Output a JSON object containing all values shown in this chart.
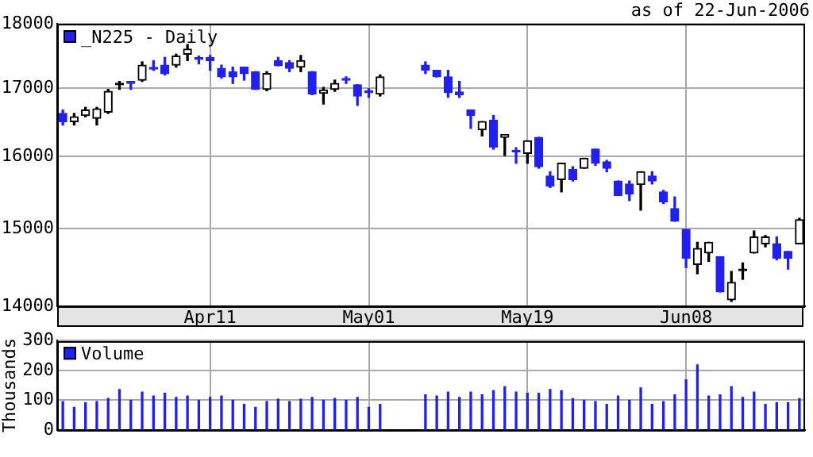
{
  "chart_data": [
    {
      "type": "candlestick",
      "annotations": [
        "as of 22-Jun-2006"
      ],
      "log": "y",
      "grid": true,
      "legend": "top left",
      "ylim": [
        14000,
        18000
      ],
      "yticks": [
        14000,
        15000,
        16000,
        17000,
        18000
      ],
      "categories": [
        null,
        null,
        null,
        null,
        null,
        null,
        null,
        null,
        null,
        null,
        null,
        null,
        null,
        "Apr11",
        null,
        null,
        null,
        null,
        null,
        null,
        null,
        null,
        null,
        null,
        null,
        null,
        null,
        "May01",
        null,
        null,
        null,
        null,
        null,
        null,
        null,
        null,
        null,
        null,
        null,
        null,
        null,
        "May19",
        null,
        null,
        null,
        null,
        null,
        null,
        null,
        null,
        null,
        null,
        null,
        null,
        null,
        "Jun08",
        null,
        null,
        null,
        null,
        null,
        null,
        null,
        null,
        null,
        null
      ],
      "series": [
        {
          "name": "_N225 - Daily",
          "color": "#2020f0",
          "colors": [
            "#2020f0",
            "#000000",
            "#000000",
            "#000000",
            "#000000",
            "#000000",
            "#2020f0",
            "#000000",
            "#2020f0",
            "#2020f0",
            "#000000",
            "#000000",
            "#2020f0",
            "#2020f0",
            "#2020f0",
            "#2020f0",
            "#2020f0",
            "#2020f0",
            "#000000",
            "#2020f0",
            "#2020f0",
            "#000000",
            "#2020f0",
            "#000000",
            "#000000",
            "#2020f0",
            "#2020f0",
            "#2020f0",
            "#000000",
            null,
            null,
            null,
            "#2020f0",
            "#2020f0",
            "#2020f0",
            "#2020f0",
            "#2020f0",
            "#000000",
            "#2020f0",
            "#000000",
            "#2020f0",
            "#000000",
            "#2020f0",
            "#2020f0",
            "#000000",
            "#2020f0",
            "#000000",
            "#2020f0",
            "#2020f0",
            "#2020f0",
            "#2020f0",
            "#000000",
            "#2020f0",
            "#2020f0",
            "#2020f0",
            "#2020f0",
            "#000000",
            "#000000",
            "#2020f0",
            "#000000",
            "#000000",
            "#000000",
            "#000000",
            "#2020f0",
            "#2020f0",
            "#000000"
          ],
          "ohlc": [
            [
              16620,
              16670,
              16450,
              16500
            ],
            [
              16500,
              16620,
              16450,
              16570
            ],
            [
              16590,
              16710,
              16570,
              16670
            ],
            [
              16550,
              16710,
              16450,
              16690
            ],
            [
              16640,
              16980,
              16620,
              16950
            ],
            [
              17050,
              17100,
              16980,
              17050
            ],
            [
              17100,
              17100,
              16980,
              17070
            ],
            [
              17120,
              17400,
              17100,
              17350
            ],
            [
              17300,
              17420,
              17270,
              17290
            ],
            [
              17350,
              17470,
              17200,
              17220
            ],
            [
              17350,
              17520,
              17320,
              17490
            ],
            [
              17520,
              17670,
              17420,
              17600
            ],
            [
              17450,
              17490,
              17370,
              17440
            ],
            [
              17470,
              17500,
              17270,
              17420
            ],
            [
              17300,
              17350,
              17150,
              17170
            ],
            [
              17250,
              17320,
              17070,
              17170
            ],
            [
              17320,
              17320,
              17120,
              17220
            ],
            [
              17250,
              17250,
              16980,
              16980
            ],
            [
              16980,
              17250,
              16960,
              17220
            ],
            [
              17420,
              17470,
              17340,
              17340
            ],
            [
              17390,
              17420,
              17250,
              17300
            ],
            [
              17320,
              17500,
              17250,
              17420
            ],
            [
              17250,
              17250,
              16900,
              16910
            ],
            [
              16920,
              17010,
              16760,
              16970
            ],
            [
              16980,
              17120,
              16950,
              17070
            ],
            [
              17140,
              17170,
              17070,
              17120
            ],
            [
              17050,
              17050,
              16740,
              16880
            ],
            [
              16960,
              16990,
              16860,
              16930
            ],
            [
              16910,
              17200,
              16880,
              17170
            ],
            null,
            null,
            null,
            [
              17350,
              17400,
              17220,
              17270
            ],
            [
              17270,
              17270,
              17170,
              17170
            ],
            [
              17170,
              17270,
              16860,
              16930
            ],
            [
              16940,
              17100,
              16860,
              16900
            ],
            [
              16670,
              16670,
              16400,
              16590
            ],
            [
              16380,
              16500,
              16290,
              16500
            ],
            [
              16520,
              16590,
              16100,
              16130
            ],
            [
              16270,
              16310,
              16010,
              16310
            ],
            [
              16070,
              16120,
              15900,
              16060
            ],
            [
              16040,
              16220,
              15900,
              16220
            ],
            [
              16270,
              16270,
              15830,
              15850
            ],
            [
              15720,
              15780,
              15560,
              15580
            ],
            [
              15670,
              15900,
              15500,
              15900
            ],
            [
              15810,
              15850,
              15650,
              15670
            ],
            [
              15830,
              15970,
              15830,
              15970
            ],
            [
              16100,
              16100,
              15870,
              15900
            ],
            [
              15920,
              15940,
              15780,
              15830
            ],
            [
              15650,
              15650,
              15450,
              15450
            ],
            [
              15610,
              15650,
              15380,
              15470
            ],
            [
              15600,
              15780,
              15250,
              15780
            ],
            [
              15720,
              15780,
              15610,
              15650
            ],
            [
              15500,
              15520,
              15340,
              15360
            ],
            [
              15270,
              15430,
              15100,
              15100
            ],
            [
              14990,
              14990,
              14490,
              14610
            ],
            [
              14530,
              14820,
              14410,
              14740
            ],
            [
              14680,
              14820,
              14570,
              14820
            ],
            [
              14630,
              14630,
              14180,
              14180
            ],
            [
              14080,
              14440,
              14060,
              14300
            ],
            [
              14450,
              14550,
              14340,
              14450
            ],
            [
              14680,
              14970,
              14680,
              14890
            ],
            [
              14800,
              14910,
              14760,
              14890
            ],
            [
              14800,
              14890,
              14590,
              14610
            ],
            [
              14700,
              14700,
              14470,
              14610
            ],
            [
              14800,
              15140,
              14800,
              15120
            ]
          ]
        }
      ]
    },
    {
      "type": "bar",
      "ylabel": "Thousands",
      "grid": true,
      "legend": "top left",
      "tick_labels": "y",
      "ylim": [
        0,
        300
      ],
      "yticks": [
        0,
        100,
        200,
        300
      ],
      "categories": [
        null,
        null,
        null,
        null,
        null,
        null,
        null,
        null,
        null,
        null,
        null,
        null,
        null,
        null,
        null,
        null,
        null,
        null,
        null,
        null,
        null,
        null,
        null,
        null,
        null,
        null,
        null,
        null,
        null,
        null,
        null,
        null,
        null,
        null,
        null,
        null,
        null,
        null,
        null,
        null,
        null,
        null,
        null,
        null,
        null,
        null,
        null,
        null,
        null,
        null,
        null,
        null,
        null,
        null,
        null,
        null,
        null,
        null,
        null,
        null,
        null,
        null,
        null,
        null,
        null,
        null
      ],
      "series": [
        {
          "name": "Volume",
          "color": "#2020f0",
          "values": [
            95,
            76,
            91,
            95,
            106,
            136,
            100,
            127,
            114,
            123,
            109,
            114,
            100,
            109,
            114,
            100,
            86,
            76,
            95,
            103,
            95,
            103,
            109,
            100,
            106,
            100,
            109,
            76,
            86,
            null,
            null,
            null,
            118,
            114,
            127,
            109,
            127,
            118,
            132,
            145,
            127,
            123,
            123,
            136,
            132,
            105,
            100,
            95,
            86,
            114,
            100,
            141,
            86,
            95,
            118,
            168,
            218,
            114,
            118,
            145,
            109,
            127,
            86,
            91,
            91,
            105
          ]
        }
      ]
    }
  ]
}
